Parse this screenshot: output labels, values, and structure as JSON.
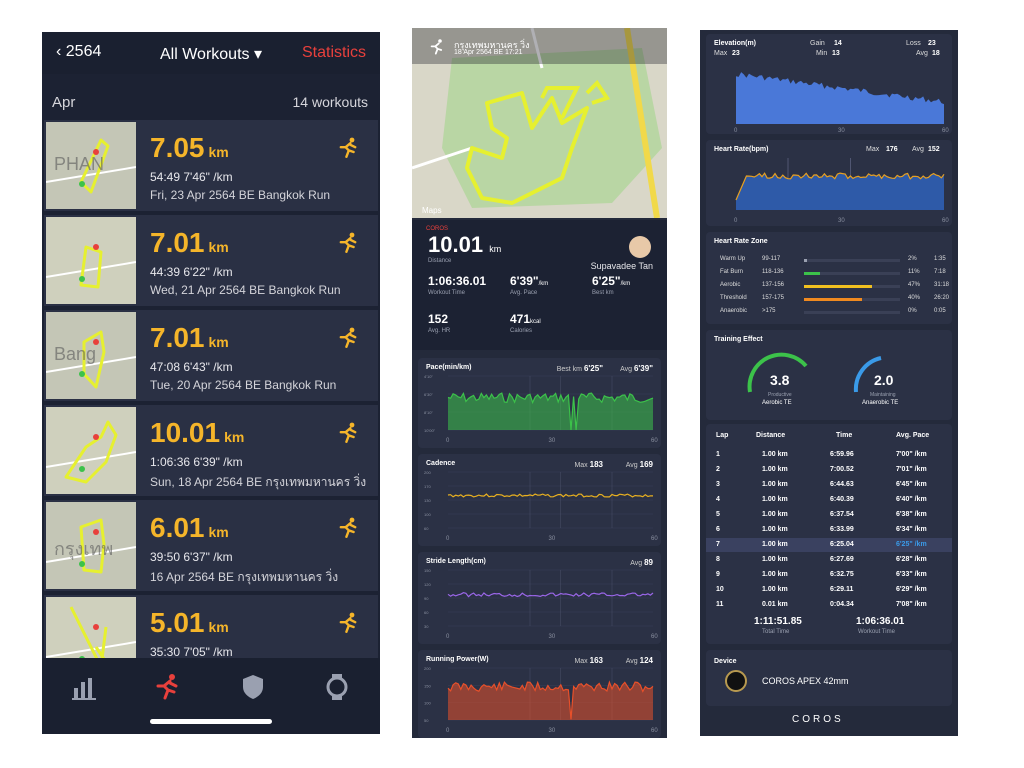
{
  "panel1": {
    "back_label": "2564",
    "title": "All Workouts",
    "stats_label": "Statistics",
    "month": "Apr",
    "count": "14 workouts",
    "workouts": [
      {
        "dist": "7.05",
        "unit": "km",
        "sub": "54:49  7'46\" /km",
        "date": "Fri, 23 Apr 2564 BE Bangkok Run",
        "map_text": "PHAN"
      },
      {
        "dist": "7.01",
        "unit": "km",
        "sub": "44:39  6'22\" /km",
        "date": "Wed, 21 Apr 2564 BE Bangkok Run",
        "map_text": ""
      },
      {
        "dist": "7.01",
        "unit": "km",
        "sub": "47:08  6'43\" /km",
        "date": "Tue, 20 Apr 2564 BE Bangkok Run",
        "map_text": "Bang"
      },
      {
        "dist": "10.01",
        "unit": "km",
        "sub": "1:06:36  6'39\" /km",
        "date": "Sun, 18 Apr 2564 BE กรุงเทพมหานคร วิ่ง",
        "map_text": ""
      },
      {
        "dist": "6.01",
        "unit": "km",
        "sub": "39:50  6'37\" /km",
        "date": "16 Apr 2564 BE กรุงเทพมหานคร วิ่ง",
        "map_text": "กรุงเทพ"
      },
      {
        "dist": "5.01",
        "unit": "km",
        "sub": "35:30  7'05\" /km",
        "date": "",
        "map_text": ""
      }
    ],
    "tabs": [
      "chart-icon",
      "run-icon",
      "shield-icon",
      "watch-icon"
    ]
  },
  "panel2": {
    "title": "กรุงเทพมหานคร วิ่ง",
    "date": "18 Apr 2564 BE 17:21",
    "maps_label": "Maps",
    "brand": "COROS",
    "distance": "10.01",
    "distance_unit": "km",
    "distance_label": "Distance",
    "user": "Supavadee Tan",
    "stats": [
      {
        "value": "1:06:36.01",
        "unit": "",
        "label": "Workout Time"
      },
      {
        "value": "6'39\"",
        "unit": "/km",
        "label": "Avg. Pace"
      },
      {
        "value": "6'25\"",
        "unit": "/km",
        "label": "Best km"
      },
      {
        "value": "152",
        "unit": "",
        "label": "Avg. HR"
      },
      {
        "value": "471",
        "unit": "kcal",
        "label": "Calories"
      }
    ],
    "pace": {
      "title": "Pace(min/km)",
      "best_label": "Best km",
      "best": "6'25\"",
      "avg_label": "Avg",
      "avg": "6'39\"",
      "yticks": [
        "4'10\"",
        "6'30\"",
        "8'10\"",
        "10'00\""
      ],
      "xticks": [
        "0",
        "30",
        "60"
      ],
      "color": "#3cc24a"
    },
    "cadence": {
      "title": "Cadence",
      "max_label": "Max",
      "max": "183",
      "avg_label": "Avg",
      "avg": "169",
      "yticks": [
        "200",
        "170",
        "130",
        "100",
        "60"
      ],
      "xticks": [
        "0",
        "30",
        "60"
      ],
      "color": "#e8b020"
    },
    "stride": {
      "title": "Stride Length(cm)",
      "avg_label": "Avg",
      "avg": "89",
      "yticks": [
        "150",
        "120",
        "90",
        "60",
        "30"
      ],
      "xticks": [
        "0",
        "30",
        "60"
      ],
      "color": "#9a66e8"
    },
    "power": {
      "title": "Running Power(W)",
      "max_label": "Max",
      "max": "163",
      "avg_label": "Avg",
      "avg": "124",
      "yticks": [
        "200",
        "150",
        "100",
        "50"
      ],
      "xticks": [
        "0",
        "30",
        "60"
      ],
      "color": "#e8502a"
    }
  },
  "panel3": {
    "elevation": {
      "title": "Elevation(m)",
      "gain_label": "Gain",
      "gain": "14",
      "loss_label": "Loss",
      "loss": "23",
      "max_label": "Max",
      "max": "23",
      "min_label": "Min",
      "min": "13",
      "avg_label": "Avg",
      "avg": "18",
      "xticks": [
        "0",
        "30",
        "60"
      ],
      "color": "#4a78d8"
    },
    "heartrate": {
      "title": "Heart Rate(bpm)",
      "max_label": "Max",
      "max": "176",
      "avg_label": "Avg",
      "avg": "152",
      "xticks": [
        "0",
        "30",
        "60"
      ],
      "color": "#e8a020"
    },
    "zones": {
      "title": "Heart Rate Zone",
      "rows": [
        {
          "name": "Warm Up",
          "range": "99-117",
          "pct": "2%",
          "pct_value": 2,
          "time": "1:35",
          "color": "#9aa0b0"
        },
        {
          "name": "Fat Burn",
          "range": "118-136",
          "pct": "11%",
          "pct_value": 11,
          "time": "7:18",
          "color": "#3cc24a"
        },
        {
          "name": "Aerobic",
          "range": "137-156",
          "pct": "47%",
          "pct_value": 47,
          "time": "31:18",
          "color": "#f0c020"
        },
        {
          "name": "Threshold",
          "range": "157-175",
          "pct": "40%",
          "pct_value": 40,
          "time": "26:20",
          "color": "#f08a20"
        },
        {
          "name": "Anaerobic",
          "range": ">175",
          "pct": "0%",
          "pct_value": 0,
          "time": "0:05",
          "color": "#e8403c"
        }
      ]
    },
    "training": {
      "title": "Training Effect",
      "aerobic": "3.8",
      "aerobic_state": "Productive",
      "aerobic_label": "Aerobic TE",
      "anaerobic": "2.0",
      "anaerobic_state": "Maintaining",
      "anaerobic_label": "Anaerobic TE"
    },
    "laps": {
      "head": [
        "Lap",
        "Distance",
        "Time",
        "Avg. Pace"
      ],
      "rows": [
        [
          "1",
          "1.00 km",
          "6:59.96",
          "7'00\" /km"
        ],
        [
          "2",
          "1.00 km",
          "7:00.52",
          "7'01\" /km"
        ],
        [
          "3",
          "1.00 km",
          "6:44.63",
          "6'45\" /km"
        ],
        [
          "4",
          "1.00 km",
          "6:40.39",
          "6'40\" /km"
        ],
        [
          "5",
          "1.00 km",
          "6:37.54",
          "6'38\" /km"
        ],
        [
          "6",
          "1.00 km",
          "6:33.99",
          "6'34\" /km"
        ],
        [
          "7",
          "1.00 km",
          "6:25.04",
          "6'25\" /km"
        ],
        [
          "8",
          "1.00 km",
          "6:27.69",
          "6'28\" /km"
        ],
        [
          "9",
          "1.00 km",
          "6:32.75",
          "6'33\" /km"
        ],
        [
          "10",
          "1.00 km",
          "6:29.11",
          "6'29\" /km"
        ],
        [
          "11",
          "0.01 km",
          "0:04.34",
          "7'08\" /km"
        ]
      ],
      "total_time": "1:11:51.85",
      "total_label": "Total Time",
      "workout_time": "1:06:36.01",
      "workout_label": "Workout Time"
    },
    "device": {
      "title": "Device",
      "name": "COROS APEX 42mm"
    },
    "brand": "COROS"
  }
}
